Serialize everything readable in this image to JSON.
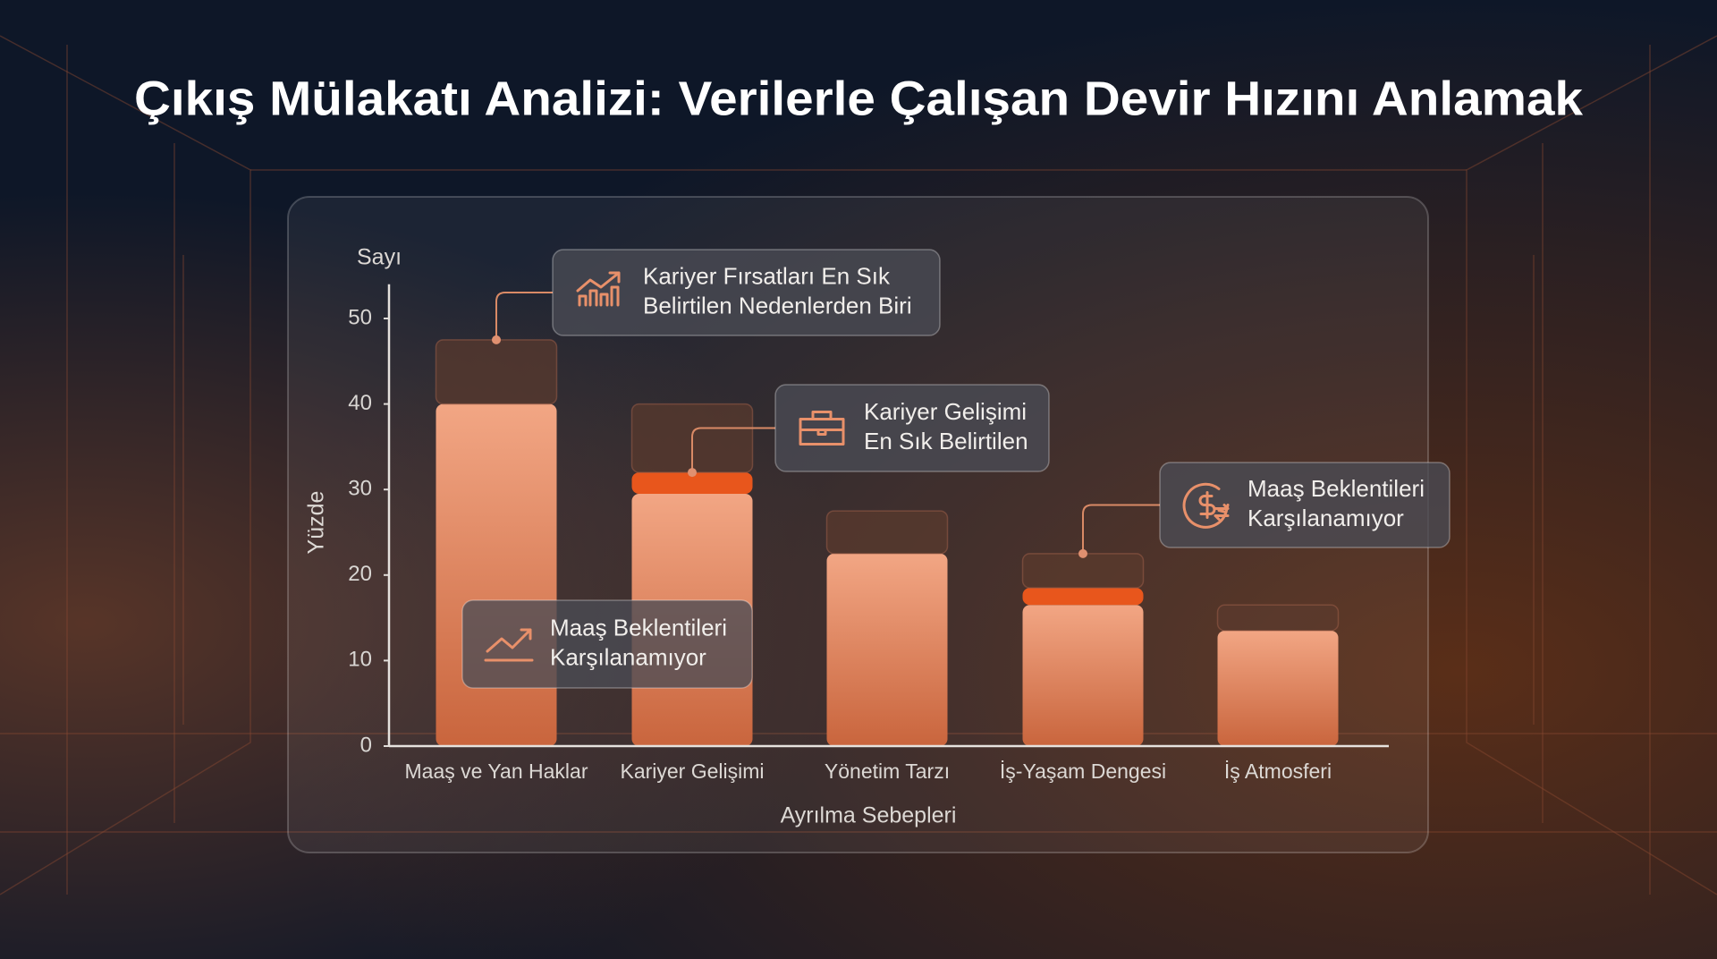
{
  "chart_data": {
    "type": "bar",
    "stacked": true,
    "title": "Çıkış Mülakatı Analizi: Verilerle Çalışan Devir Hızını Anlamak",
    "y_label_top": "Sayı",
    "y_label": "Yüzde",
    "x_label": "Ayrılma Sebepleri",
    "categories": [
      "Maaş ve Yan Haklar",
      "Kariyer Gelişimi",
      "Yönetim Tarzı",
      "İş-Yaşam Dengesi",
      "İş Atmosferi"
    ],
    "series": [
      {
        "color": "#e98e68",
        "values": [
          40,
          29.5,
          22.5,
          16.5,
          13.5
        ]
      },
      {
        "color": "#e8561c",
        "values": [
          null,
          2.5,
          null,
          2,
          null
        ]
      },
      {
        "color": "#5b3a2e",
        "values": [
          7.5,
          8,
          5,
          4,
          3
        ]
      }
    ],
    "ylim": [
      0,
      54
    ],
    "yticks": [
      0,
      10,
      20,
      30,
      40,
      50
    ],
    "annotations": [
      {
        "lines": [
          "Kariyer Fırsatları En Sık",
          "Belirtilen Nedenlerden Biri"
        ]
      },
      {
        "lines": [
          "Kariyer Gelişimi",
          "En Sık Belirtilen"
        ]
      },
      {
        "lines": [
          "Maaş Beklentileri",
          "Karşılanamıyor"
        ]
      },
      {
        "lines": [
          "Maaş Beklentileri",
          "Karşılanamıyor"
        ]
      }
    ]
  }
}
